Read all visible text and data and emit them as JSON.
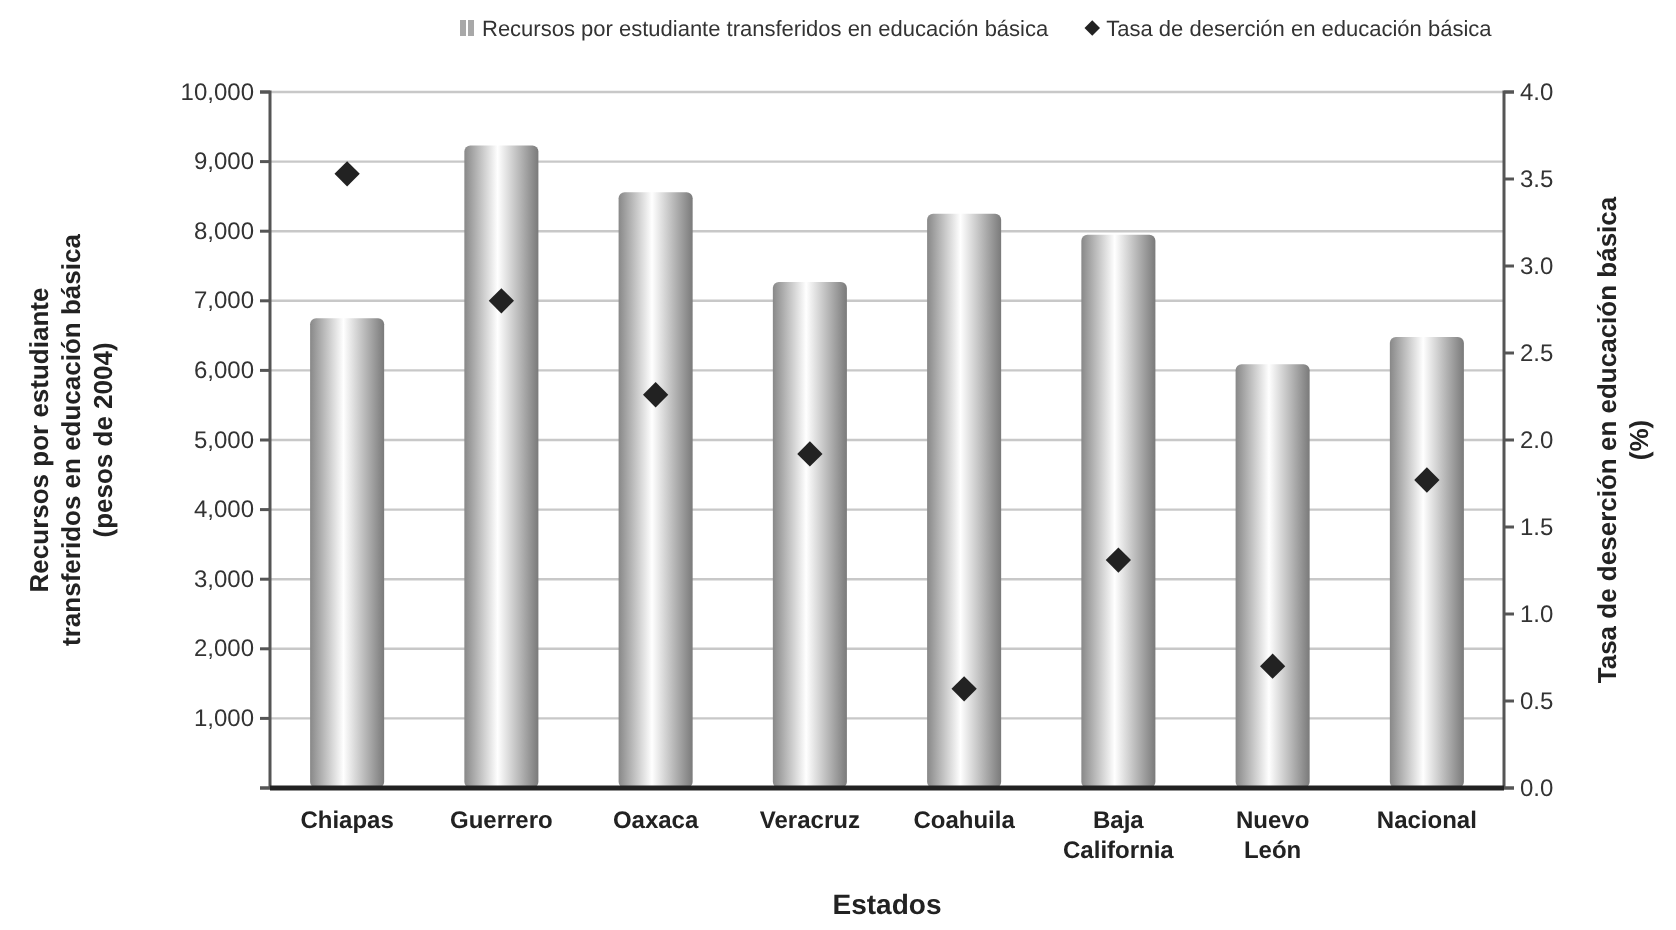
{
  "chart_data": {
    "type": "bar",
    "xlabel": "Estados",
    "ylabel": "Recursos por estudiante transferidos en educación básica (pesos de 2004)",
    "y2label": "Tasa de deserción en educación básica (%)",
    "categories": [
      "Chiapas",
      "Guerrero",
      "Oaxaca",
      "Veracruz",
      "Coahuila",
      "Baja California",
      "Nuevo León",
      "Nacional"
    ],
    "series": [
      {
        "name": "Recursos por estudiante transferidos en educación básica",
        "color": "#a8a8a8",
        "values": [
          6750,
          9230,
          8560,
          7270,
          8250,
          7950,
          6090,
          6480
        ]
      },
      {
        "name": "Tasa de deserción en educación básica",
        "type": "scatter",
        "axis": "y2",
        "marker": "diamond",
        "color": "#222222",
        "values": [
          3.53,
          2.8,
          2.26,
          1.92,
          0.57,
          1.31,
          0.7,
          1.77
        ]
      }
    ],
    "ylim": [
      0,
      10000
    ],
    "yticks": [
      {
        "value": 0,
        "label": null
      },
      {
        "value": 1000,
        "label": "1,000"
      },
      {
        "value": 2000,
        "label": "2,000"
      },
      {
        "value": 3000,
        "label": "3,000"
      },
      {
        "value": 4000,
        "label": "4,000"
      },
      {
        "value": 5000,
        "label": "5,000"
      },
      {
        "value": 6000,
        "label": "6,000"
      },
      {
        "value": 7000,
        "label": "7,000"
      },
      {
        "value": 8000,
        "label": "8,000"
      },
      {
        "value": 9000,
        "label": "9,000"
      },
      {
        "value": 10000,
        "label": "10,000"
      }
    ],
    "y2lim": [
      0,
      4
    ],
    "y2ticks": [
      {
        "value": 0,
        "label": "0.0"
      },
      {
        "value": 0.5,
        "label": "0.5"
      },
      {
        "value": 1,
        "label": "1.0"
      },
      {
        "value": 1.5,
        "label": "1.5"
      },
      {
        "value": 2,
        "label": "2.0"
      },
      {
        "value": 2.5,
        "label": "2.5"
      },
      {
        "value": 3,
        "label": "3.0"
      },
      {
        "value": 3.5,
        "label": "3.5"
      },
      {
        "value": 4,
        "label": "4.0"
      }
    ],
    "grid": "y",
    "legend": "top"
  }
}
